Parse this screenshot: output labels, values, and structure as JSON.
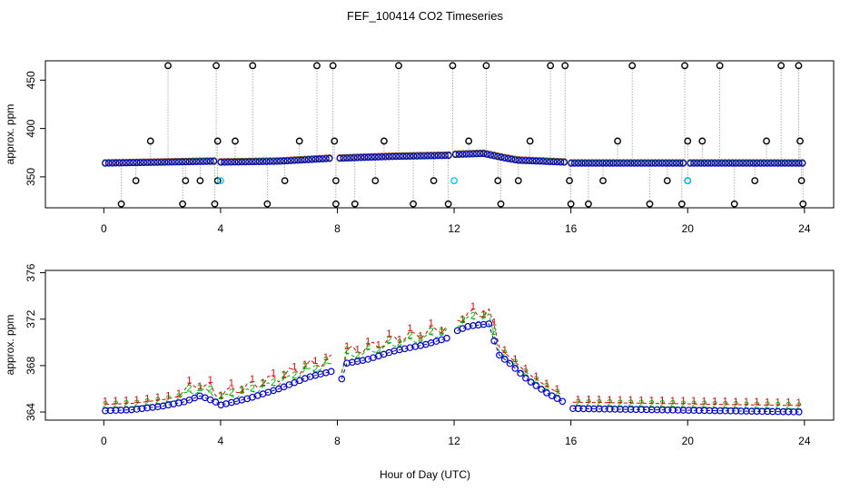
{
  "chart_data": [
    {
      "type": "scatter",
      "panel": "top",
      "title": "FEF_100414  CO2 Timeseries",
      "xlabel": "",
      "ylabel": "approx. ppm",
      "xlim": [
        -2,
        25
      ],
      "ylim": [
        318,
        470
      ],
      "x_ticks": [
        0,
        4,
        8,
        12,
        16,
        20,
        24
      ],
      "y_ticks": [
        350,
        400,
        450
      ],
      "baseline": [
        [
          0,
          364
        ],
        [
          2,
          365
        ],
        [
          3.8,
          366
        ],
        [
          4,
          365
        ],
        [
          6,
          366
        ],
        [
          7.8,
          369
        ],
        [
          8,
          369
        ],
        [
          10,
          371
        ],
        [
          11.8,
          372
        ],
        [
          12,
          373
        ],
        [
          13,
          374
        ],
        [
          13.8,
          369
        ],
        [
          14.2,
          367
        ],
        [
          15.8,
          365
        ],
        [
          16,
          364
        ],
        [
          24,
          364
        ]
      ],
      "outliers_high": [
        [
          2.2,
          465
        ],
        [
          3.85,
          465
        ],
        [
          5.1,
          465
        ],
        [
          7.3,
          465
        ],
        [
          7.85,
          465
        ],
        [
          10.1,
          465
        ],
        [
          11.95,
          465
        ],
        [
          13.1,
          465
        ],
        [
          15.3,
          465
        ],
        [
          15.8,
          465
        ],
        [
          18.1,
          465
        ],
        [
          19.9,
          465
        ],
        [
          21.1,
          465
        ],
        [
          23.2,
          465
        ],
        [
          23.8,
          465
        ]
      ],
      "outliers_mid": [
        [
          1.6,
          387
        ],
        [
          3.9,
          387
        ],
        [
          4.5,
          387
        ],
        [
          6.7,
          387
        ],
        [
          7.9,
          387
        ],
        [
          9.6,
          387
        ],
        [
          12.5,
          387
        ],
        [
          14.6,
          387
        ],
        [
          17.6,
          387
        ],
        [
          20.0,
          387
        ],
        [
          20.5,
          387
        ],
        [
          22.7,
          387
        ],
        [
          23.85,
          387
        ]
      ],
      "outliers_low": [
        [
          1.1,
          346
        ],
        [
          2.8,
          346
        ],
        [
          3.3,
          346
        ],
        [
          3.9,
          346
        ],
        [
          6.2,
          346
        ],
        [
          7.95,
          346
        ],
        [
          9.3,
          346
        ],
        [
          11.3,
          346
        ],
        [
          13.5,
          346
        ],
        [
          14.2,
          346
        ],
        [
          15.95,
          346
        ],
        [
          17.1,
          346
        ],
        [
          19.3,
          346
        ],
        [
          20.0,
          346
        ],
        [
          22.3,
          346
        ],
        [
          23.9,
          346
        ]
      ],
      "outliers_bottom": [
        [
          0.6,
          322
        ],
        [
          2.7,
          322
        ],
        [
          3.8,
          322
        ],
        [
          5.6,
          322
        ],
        [
          7.95,
          322
        ],
        [
          8.6,
          322
        ],
        [
          10.6,
          322
        ],
        [
          11.8,
          322
        ],
        [
          13.6,
          322
        ],
        [
          16.0,
          322
        ],
        [
          16.6,
          322
        ],
        [
          18.7,
          322
        ],
        [
          19.8,
          322
        ],
        [
          21.6,
          322
        ],
        [
          23.95,
          322
        ]
      ],
      "cyan_points": [
        [
          4.0,
          346
        ],
        [
          12.0,
          346
        ],
        [
          20.0,
          346
        ]
      ]
    },
    {
      "type": "scatter",
      "panel": "bottom",
      "title": "",
      "xlabel": "Hour of Day (UTC)",
      "ylabel": "approx. ppm",
      "xlim": [
        -2,
        25
      ],
      "ylim": [
        363.3,
        376.2
      ],
      "x_ticks": [
        0,
        4,
        8,
        12,
        16,
        20,
        24
      ],
      "y_ticks": [
        364,
        368,
        372,
        376
      ],
      "series": [
        {
          "name": "1",
          "color": "#e00000",
          "offset": 0.55
        },
        {
          "name": "2",
          "color": "#00b000",
          "offset": 0.25
        },
        {
          "name": "3",
          "color": "#0000cc",
          "offset": 0.0
        }
      ],
      "profile": [
        [
          0,
          364.1
        ],
        [
          1,
          364.2
        ],
        [
          2,
          364.5
        ],
        [
          2.8,
          364.9
        ],
        [
          3.3,
          365.4
        ],
        [
          3.8,
          364.9
        ],
        [
          4,
          364.6
        ],
        [
          5,
          365.2
        ],
        [
          6,
          366.0
        ],
        [
          7,
          367.0
        ],
        [
          7.8,
          367.5
        ],
        [
          8.1,
          366.4
        ],
        [
          8.3,
          368.2
        ],
        [
          9,
          368.5
        ],
        [
          10,
          369.3
        ],
        [
          11,
          369.8
        ],
        [
          11.8,
          370.4
        ],
        [
          12,
          370.9
        ],
        [
          12.5,
          371.4
        ],
        [
          13.2,
          371.6
        ],
        [
          13.5,
          369.0
        ],
        [
          13.9,
          368.2
        ],
        [
          14.5,
          366.8
        ],
        [
          15.2,
          365.6
        ],
        [
          15.8,
          364.8
        ],
        [
          16,
          364.3
        ],
        [
          24,
          364.0
        ]
      ]
    }
  ]
}
